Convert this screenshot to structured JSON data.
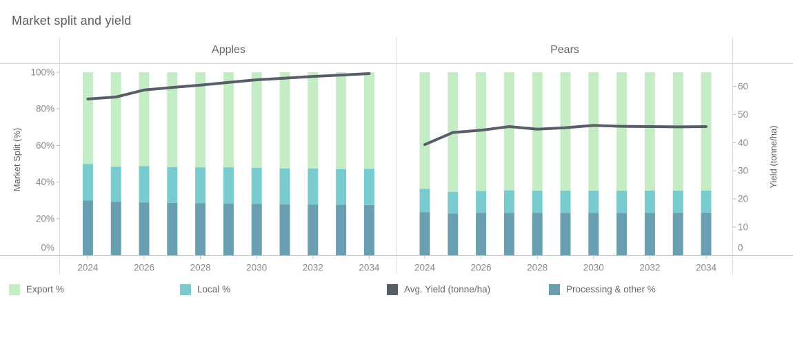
{
  "chart_data": {
    "type": "bar",
    "subtype": "stacked-percent-bars-with-yield-line",
    "title": "Market split and yield",
    "categories": [
      2024,
      2025,
      2026,
      2027,
      2028,
      2029,
      2030,
      2031,
      2032,
      2033,
      2034
    ],
    "x_tick_years": [
      2024,
      2026,
      2028,
      2030,
      2032,
      2034
    ],
    "left_axis": {
      "label": "Market Split (%)",
      "tick_values": [
        0,
        20,
        40,
        60,
        80,
        100
      ],
      "tick_labels": [
        "0%",
        "20%",
        "40%",
        "60%",
        "80%",
        "100%"
      ],
      "range": [
        0,
        100
      ]
    },
    "right_axis": {
      "label": "Yield (tonne/ha)",
      "tick_values": [
        0,
        10,
        20,
        30,
        40,
        50,
        60
      ],
      "tick_labels": [
        "0",
        "10",
        "20",
        "30",
        "40",
        "50",
        "60"
      ],
      "range": [
        0,
        65
      ]
    },
    "legend": [
      {
        "label": "Export %",
        "color": "#c4edc6"
      },
      {
        "label": "Local %",
        "color": "#78ccd0"
      },
      {
        "label": "Avg. Yield (tonne/ha)",
        "color": "#575e68"
      },
      {
        "label": "Processing & other %",
        "color": "#699fb1"
      }
    ],
    "panels": [
      {
        "name": "Apples",
        "series": [
          {
            "name": "Processing & other %",
            "color": "#699fb1",
            "values": [
              30.0,
              29.2,
              28.9,
              28.6,
              28.4,
              28.2,
              28.0,
              27.8,
              27.7,
              27.6,
              27.5
            ]
          },
          {
            "name": "Local %",
            "color": "#78ccd0",
            "values": [
              19.8,
              19.2,
              19.8,
              19.6,
              19.7,
              19.9,
              19.8,
              19.7,
              19.8,
              19.5,
              19.7
            ]
          },
          {
            "name": "Export %",
            "color": "#c4edc6",
            "values": [
              50.2,
              51.6,
              51.3,
              51.8,
              51.9,
              51.9,
              52.2,
              52.5,
              52.5,
              52.9,
              52.8
            ]
          }
        ],
        "line": {
          "name": "Avg. Yield (tonne/ha)",
          "color": "#575e68",
          "values": [
            55.5,
            56.2,
            58.7,
            59.6,
            60.4,
            61.4,
            62.3,
            62.9,
            63.5,
            64.0,
            64.5
          ]
        }
      },
      {
        "name": "Pears",
        "series": [
          {
            "name": "Processing & other %",
            "color": "#699fb1",
            "values": [
              23.5,
              22.8,
              23.2,
              23.2,
              23.2,
              23.2,
              23.2,
              23.2,
              23.2,
              23.2,
              23.2
            ]
          },
          {
            "name": "Local %",
            "color": "#78ccd0",
            "values": [
              12.8,
              11.9,
              11.9,
              12.3,
              12.1,
              12.1,
              12.1,
              12.1,
              12.1,
              12.1,
              12.1
            ]
          },
          {
            "name": "Export %",
            "color": "#c4edc6",
            "values": [
              63.7,
              65.3,
              64.9,
              64.5,
              64.7,
              64.7,
              64.7,
              64.7,
              64.7,
              64.7,
              64.7
            ]
          }
        ],
        "line": {
          "name": "Avg. Yield (tonne/ha)",
          "color": "#575e68",
          "values": [
            39.3,
            43.6,
            44.4,
            45.7,
            44.8,
            45.3,
            46.1,
            45.8,
            45.7,
            45.6,
            45.7
          ]
        }
      }
    ],
    "layout_hints": {
      "grid": "off",
      "legend_position": "bottom",
      "bar_mode": "stacked-100"
    }
  }
}
